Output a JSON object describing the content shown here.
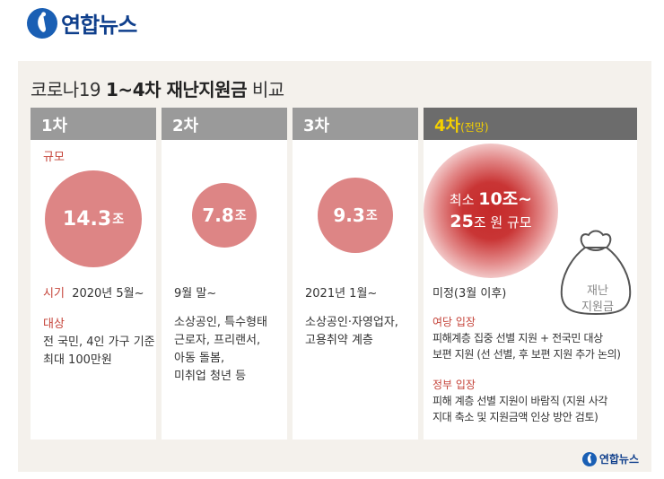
{
  "brand": {
    "name": "연합뉴스"
  },
  "title": {
    "prefix": "코로나19 ",
    "bold": "1~4차 재난지원금",
    "suffix": " 비교"
  },
  "columns": [
    {
      "head": "1차",
      "scale_label": "규모",
      "amount": "14.3",
      "unit": "조",
      "time_label": "시기",
      "time": "2020년 5월~",
      "target_label": "대상",
      "target_lines": [
        "전 국민, 4인 가구 기준",
        "최대 100만원"
      ]
    },
    {
      "head": "2차",
      "amount": "7.8",
      "unit": "조",
      "time": "9월 말~",
      "target_lines": [
        "소상공인, 특수형태",
        "근로자, 프리랜서,",
        "아동 돌봄,",
        "미취업 청년 등"
      ]
    },
    {
      "head": "3차",
      "amount": "9.3",
      "unit": "조",
      "time": "2021년 1월~",
      "target_lines": [
        "소상공인·자영업자,",
        "고용취약 계층"
      ]
    },
    {
      "head": "4차",
      "head_sub": "(전망)",
      "amount_line1_prefix": "최소 ",
      "amount_line1_value": "10조~",
      "amount_line2_value": "25",
      "amount_line2_suffix": "조 원 규모",
      "time": "미정(3월 이후)",
      "bag_label_line1": "재난",
      "bag_label_line2": "지원금",
      "ruling_label": "여당 입장",
      "ruling_lines": [
        "피해계층 집중 선별 지원 + 전국민 대상",
        "보편 지원 (선 선별, 후 보편 지원 추가 논의)"
      ],
      "gov_label": "정부 입장",
      "gov_lines": [
        "피해 계층 선별 지원이 바람직 (지원 사각",
        "지대 축소 및 지원금액 인상 방안 검토)"
      ]
    }
  ],
  "colors": {
    "accent_red": "#c5443a",
    "circle_pink": "#dd8585",
    "header_gray": "#9a9a9a",
    "header_dark": "#6c6c6c",
    "header_highlight": "#f5d000",
    "brand_blue": "#1a5fb4"
  }
}
